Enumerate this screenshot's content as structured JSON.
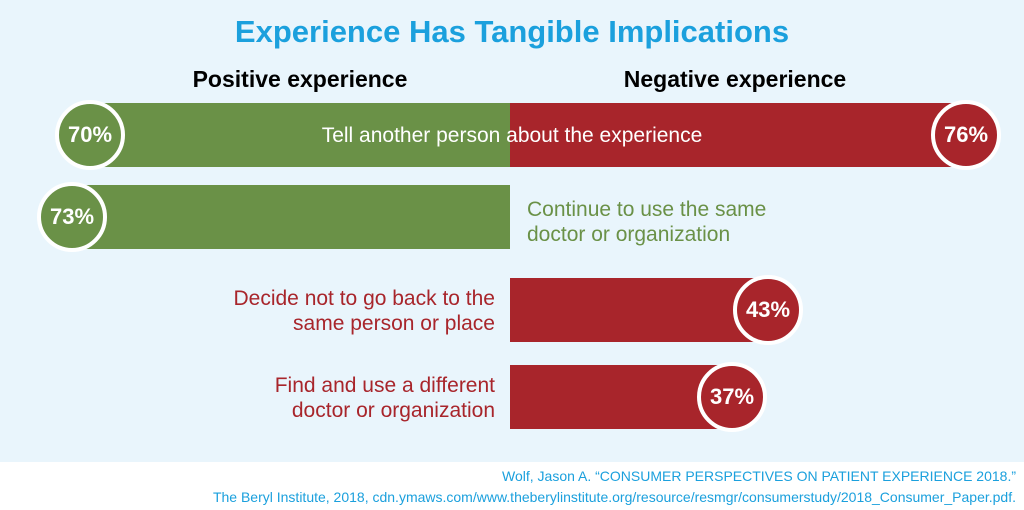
{
  "chart_data": {
    "type": "bar",
    "title": "Experience Has Tangible Implications",
    "series_headers": {
      "positive": "Positive experience",
      "negative": "Negative experience"
    },
    "colors": {
      "positive": "#6a9147",
      "negative": "#a8252b",
      "title": "#1ba0dd",
      "background": "#e9f5fc"
    },
    "rows": [
      {
        "label": "Tell another person about the experience",
        "positive": 70,
        "positive_label": "70%",
        "negative": 76,
        "negative_label": "76%"
      },
      {
        "label": "Continue to use the same doctor or organization",
        "positive": 73,
        "positive_label": "73%"
      },
      {
        "label": "Decide not to go back to the same person or place",
        "negative": 43,
        "negative_label": "43%"
      },
      {
        "label": "Find and use a different doctor or organization",
        "negative": 37,
        "negative_label": "37%"
      }
    ]
  },
  "source": {
    "line1": "Wolf, Jason A. “CONSUMER PERSPECTIVES ON PATIENT EXPERIENCE 2018.”",
    "line2": "The Beryl Institute, 2018, cdn.ymaws.com/www.theberylinstitute.org/resource/resmgr/consumerstudy/2018_Consumer_Paper.pdf."
  }
}
